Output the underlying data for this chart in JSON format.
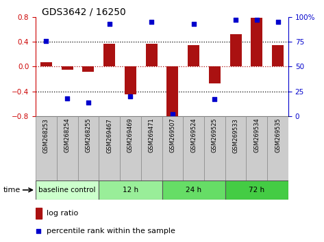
{
  "title": "GDS3642 / 16250",
  "samples": [
    "GSM268253",
    "GSM268254",
    "GSM268255",
    "GSM269467",
    "GSM269469",
    "GSM269471",
    "GSM269507",
    "GSM269524",
    "GSM269525",
    "GSM269533",
    "GSM269534",
    "GSM269535"
  ],
  "log_ratio": [
    0.07,
    -0.05,
    -0.08,
    0.37,
    -0.45,
    0.37,
    -0.82,
    0.35,
    -0.27,
    0.52,
    0.79,
    0.35
  ],
  "percentile_rank": [
    76,
    18,
    14,
    93,
    20,
    95,
    2,
    93,
    17,
    97,
    97,
    95
  ],
  "bar_color": "#aa1111",
  "dot_color": "#0000cc",
  "ylim": [
    -0.8,
    0.8
  ],
  "y2lim": [
    0,
    100
  ],
  "yticks": [
    -0.8,
    -0.4,
    0.0,
    0.4,
    0.8
  ],
  "y2ticks": [
    0,
    25,
    50,
    75,
    100
  ],
  "dotted_lines_black": [
    -0.4,
    0.4
  ],
  "dotted_line_red": 0.0,
  "groups": [
    {
      "label": "baseline control",
      "start": 0,
      "end": 3,
      "color": "#ccffcc"
    },
    {
      "label": "12 h",
      "start": 3,
      "end": 6,
      "color": "#99ee99"
    },
    {
      "label": "24 h",
      "start": 6,
      "end": 9,
      "color": "#66dd66"
    },
    {
      "label": "72 h",
      "start": 9,
      "end": 12,
      "color": "#44cc44"
    }
  ],
  "xlabel_time": "time",
  "legend_log_ratio": "log ratio",
  "legend_percentile": "percentile rank within the sample",
  "bar_width": 0.55,
  "left_axis_color": "#cc0000",
  "right_axis_color": "#0000cc",
  "background_color": "#ffffff",
  "sample_box_color": "#cccccc",
  "sample_box_edge": "#888888"
}
